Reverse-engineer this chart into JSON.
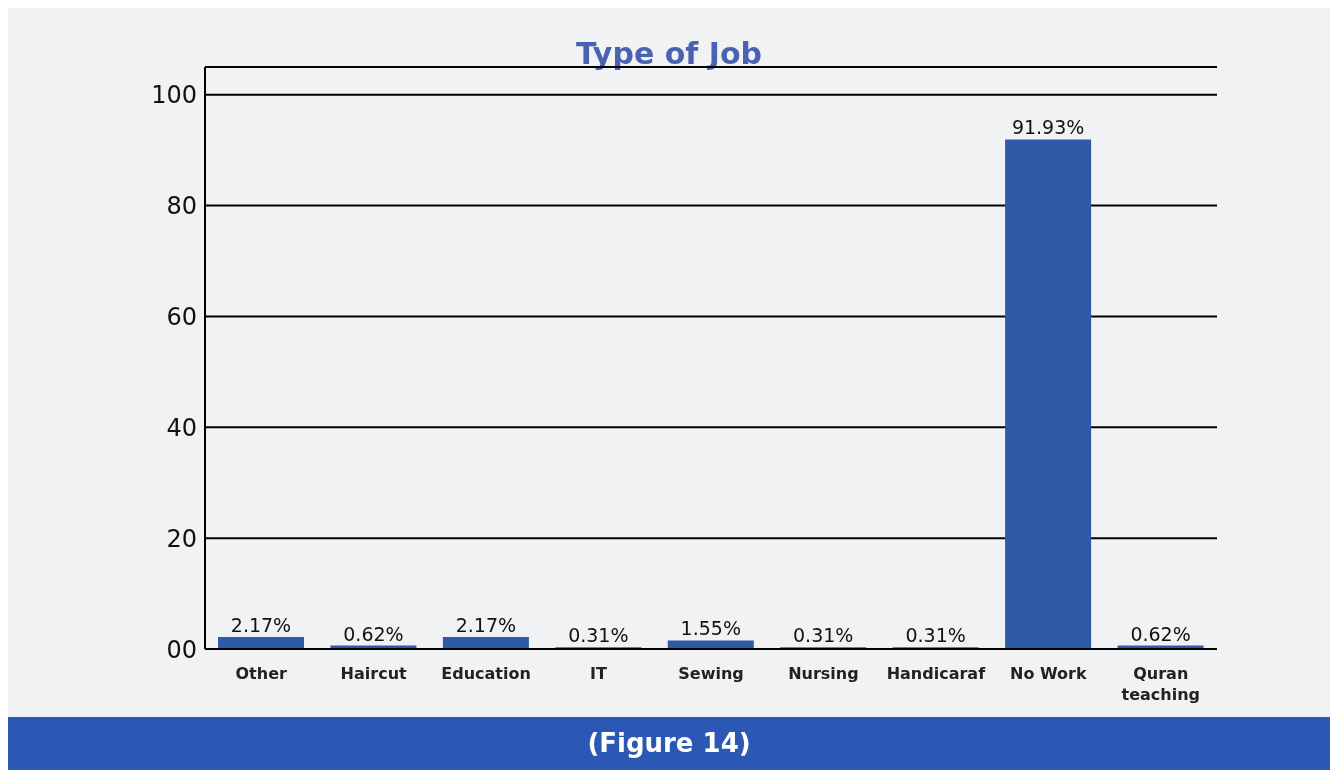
{
  "chart_data": {
    "type": "bar",
    "title": "Type of Job",
    "categories": [
      "Other",
      "Haircut",
      "Education",
      "IT",
      "Sewing",
      "Nursing",
      "Handicaraf",
      "No Work",
      "Quran teaching"
    ],
    "values": [
      2.17,
      0.62,
      2.17,
      0.31,
      1.55,
      0.31,
      0.31,
      91.93,
      0.62
    ],
    "value_labels": [
      "2.17%",
      "0.62%",
      "2.17%",
      "0.31%",
      "1.55%",
      "0.31%",
      "0.31%",
      "91.93%",
      "0.62%"
    ],
    "color": "#3059a8",
    "ylim": [
      0,
      105
    ],
    "yticks": [
      {
        "value": 0,
        "label": "00"
      },
      20,
      40,
      60,
      80,
      100
    ],
    "grid": "y",
    "annotations": [
      "(Figure 14)"
    ]
  }
}
